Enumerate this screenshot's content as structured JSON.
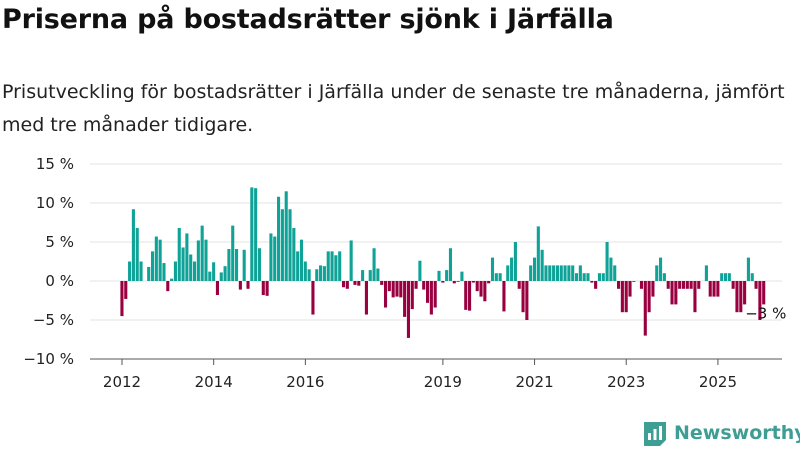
{
  "title": "Priserna på bostadsrätter sjönk i Järfälla",
  "subtitle": "Prisutveckling för bostadsrätter i Järfälla under de senaste tre månaderna, jämfört med tre månader tidigare.",
  "brand": {
    "name": "Newsworthy"
  },
  "colors": {
    "positive": "#0fa397",
    "negative": "#990040",
    "grid": "#e3e3e3",
    "brand": "#3f9e93"
  },
  "chart_data": {
    "type": "bar",
    "unit": "%",
    "ylim": [
      -10,
      15
    ],
    "yticks": [
      15,
      10,
      5,
      0,
      -5,
      -10
    ],
    "ytick_labels": [
      "15 %",
      "10 %",
      "5 %",
      "0 %",
      "−5 %",
      "−10 %"
    ],
    "xtick_labels": [
      "2012",
      "2014",
      "2016",
      "2019",
      "2021",
      "2023",
      "2025"
    ],
    "xtick_index": [
      0,
      24,
      48,
      84,
      108,
      132,
      156
    ],
    "start_index_of_first_bar": 0,
    "values": [
      -4.5,
      -2.3,
      2.5,
      9.2,
      6.8,
      2.5,
      0,
      1.8,
      3.8,
      5.7,
      5.3,
      2.3,
      -1.3,
      0.3,
      2.5,
      6.8,
      4.3,
      6.1,
      3.4,
      2.5,
      5.2,
      7.1,
      5.3,
      1.2,
      2.4,
      -1.8,
      1.1,
      1.9,
      4.1,
      7.1,
      4.1,
      -1.1,
      4.0,
      -1.0,
      12.0,
      11.9,
      4.2,
      -1.8,
      -1.9,
      6.1,
      5.7,
      10.8,
      9.2,
      11.5,
      9.2,
      6.8,
      3.8,
      5.3,
      2.5,
      1.5,
      -4.3,
      1.5,
      2.0,
      1.9,
      3.8,
      3.8,
      3.3,
      3.8,
      -0.8,
      -1.0,
      5.2,
      -0.5,
      -0.6,
      1.4,
      -4.3,
      1.4,
      4.2,
      1.6,
      -0.5,
      -3.4,
      -1.3,
      -2.1,
      -2.0,
      -2.1,
      -4.6,
      -7.3,
      -3.6,
      -1.0,
      2.6,
      -1.1,
      -2.8,
      -4.3,
      -3.4,
      1.3,
      -0.2,
      1.4,
      4.2,
      -0.3,
      -0.1,
      1.2,
      -3.7,
      -3.8,
      -0.2,
      -1.3,
      -2.0,
      -2.6,
      -0.3,
      3.0,
      1.0,
      1.0,
      -3.9,
      2.0,
      3.0,
      5.0,
      -1.0,
      -4.0,
      -5.0,
      2.0,
      3.0,
      7.0,
      4.0,
      2.0,
      2.0,
      2.0,
      2.0,
      2.0,
      2.0,
      2.0,
      2.0,
      1.0,
      2.0,
      1.0,
      1.0,
      -0.2,
      -1.0,
      1.0,
      1.0,
      5.0,
      3.0,
      2.0,
      -1.0,
      -4.0,
      -4.0,
      -2.0,
      -0.1,
      0.0,
      -1.0,
      -7.0,
      -4.0,
      -2.0,
      2.0,
      3.0,
      1.0,
      -1.0,
      -3.0,
      -3.0,
      -1.0,
      -1.0,
      -1.0,
      -1.0,
      -4.0,
      -1.0,
      0.0,
      2.0,
      -2.0,
      -2.0,
      -2.0,
      1.0,
      1.0,
      1.0,
      -1.0,
      -4.0,
      -4.0,
      -3.0,
      3.0,
      1.0,
      -1.0,
      -5.0,
      -3.0
    ],
    "data_labels": [
      {
        "index": 168,
        "text": "−3 %"
      }
    ]
  }
}
